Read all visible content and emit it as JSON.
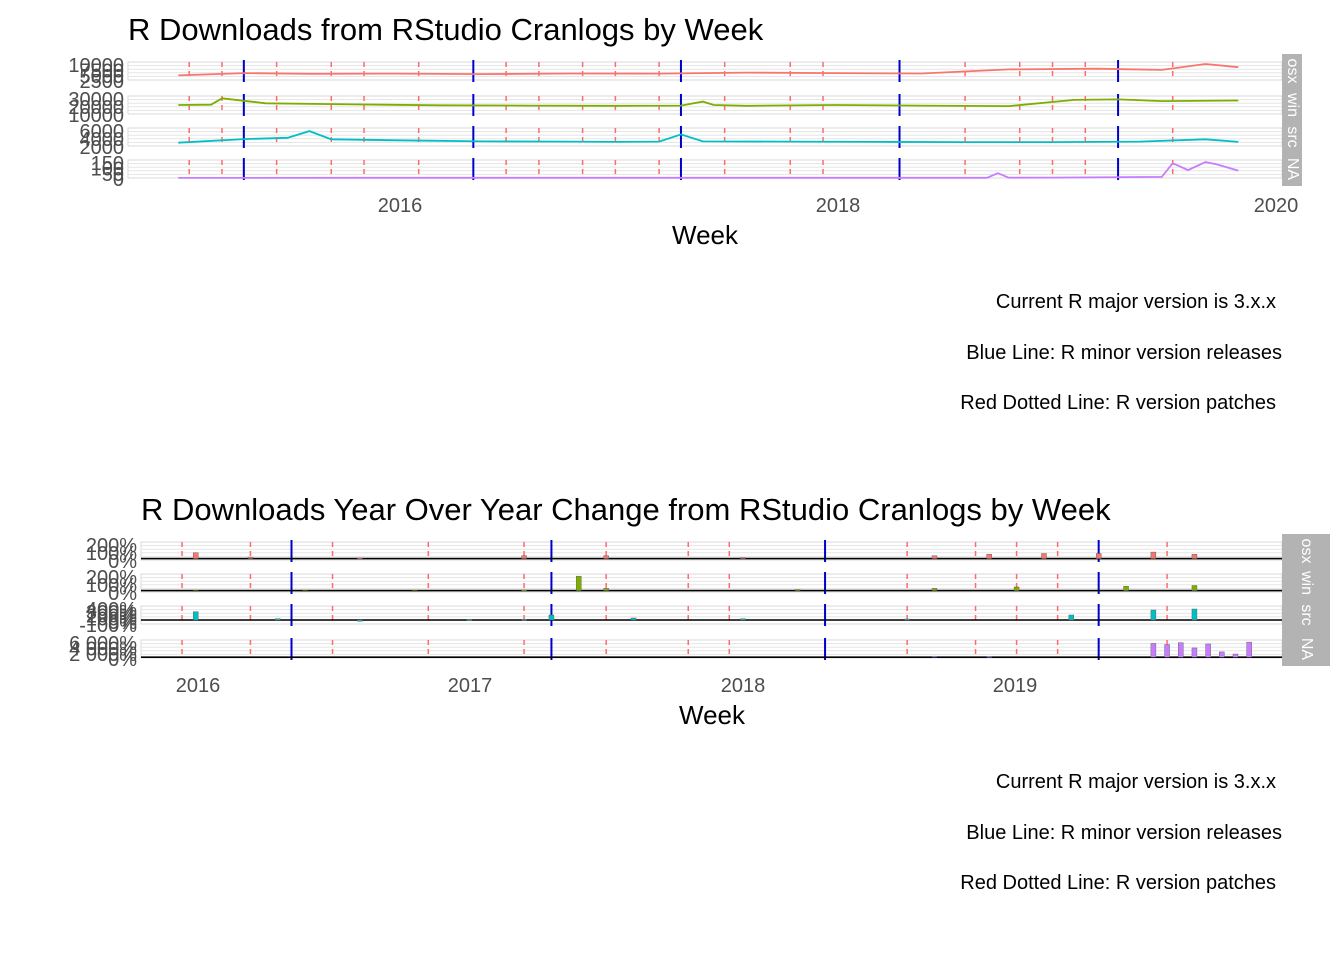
{
  "chart_data": [
    {
      "type": "line",
      "title": "R Downloads from RStudio Cranlogs by Week",
      "xlabel": "Week",
      "ylabel": "",
      "x_ticks": [
        "2016",
        "2018",
        "2020"
      ],
      "xlim": [
        2014.77,
        2020.05
      ],
      "grid": true,
      "panels": [
        {
          "name": "osx",
          "strip_label": "osx",
          "color": "#F8766D",
          "ylim": [
            0,
            11000
          ],
          "y_ticks": [
            "10000",
            "7500",
            "5000",
            "2500"
          ],
          "x": [
            2015.0,
            2015.3,
            2015.6,
            2016.0,
            2016.4,
            2016.8,
            2017.2,
            2017.6,
            2018.0,
            2018.4,
            2018.8,
            2019.2,
            2019.5,
            2019.7,
            2019.85
          ],
          "values": [
            2800,
            4200,
            3800,
            3900,
            3600,
            4000,
            3900,
            4500,
            4200,
            4000,
            6500,
            6900,
            6200,
            9800,
            7800
          ]
        },
        {
          "name": "win",
          "strip_label": "win",
          "color": "#7CAE00",
          "ylim": [
            0,
            32000
          ],
          "y_ticks": [
            "30000",
            "20000",
            "10000"
          ],
          "x": [
            2015.0,
            2015.15,
            2015.2,
            2015.4,
            2015.8,
            2016.2,
            2016.6,
            2017.0,
            2017.3,
            2017.4,
            2017.45,
            2017.6,
            2018.0,
            2018.4,
            2018.8,
            2019.1,
            2019.3,
            2019.5,
            2019.85
          ],
          "values": [
            16000,
            16500,
            28000,
            19000,
            17000,
            15500,
            15000,
            14500,
            15000,
            22000,
            16000,
            14500,
            16000,
            15000,
            14000,
            25000,
            26000,
            23000,
            24000
          ]
        },
        {
          "name": "src",
          "strip_label": "src",
          "color": "#00BFC4",
          "ylim": [
            0,
            7000
          ],
          "y_ticks": [
            "6000",
            "4000",
            "2000"
          ],
          "x": [
            2015.0,
            2015.3,
            2015.5,
            2015.6,
            2015.7,
            2016.0,
            2016.4,
            2016.8,
            2017.0,
            2017.2,
            2017.3,
            2017.4,
            2017.8,
            2018.2,
            2018.6,
            2019.0,
            2019.4,
            2019.7,
            2019.85
          ],
          "values": [
            1300,
            2700,
            3200,
            5800,
            2600,
            2200,
            1800,
            1700,
            1600,
            1700,
            4500,
            1800,
            1700,
            1600,
            1500,
            1500,
            1700,
            2600,
            1600
          ]
        },
        {
          "name": "NA",
          "strip_label": "NA",
          "color": "#C77CFF",
          "ylim": [
            0,
            170
          ],
          "y_ticks": [
            "150",
            "100",
            "50",
            "0"
          ],
          "x": [
            2015.0,
            2015.8,
            2016.5,
            2017.5,
            2018.5,
            2018.7,
            2018.75,
            2018.8,
            2019.0,
            2019.5,
            2019.55,
            2019.62,
            2019.7,
            2019.75,
            2019.85
          ],
          "values": [
            1,
            2,
            2,
            2,
            2,
            2,
            45,
            3,
            4,
            10,
            140,
            75,
            150,
            130,
            70
          ]
        }
      ],
      "minor_version_releases": [
        2015.3,
        2016.35,
        2017.3,
        2018.3,
        2019.3
      ],
      "patch_releases": [
        2015.05,
        2015.2,
        2015.45,
        2015.7,
        2015.85,
        2016.1,
        2016.5,
        2016.65,
        2016.85,
        2017.0,
        2017.2,
        2017.5,
        2017.8,
        2017.95,
        2018.6,
        2018.85,
        2019.0,
        2019.15,
        2019.55
      ]
    },
    {
      "type": "bar",
      "title": "R Downloads Year Over Year Change from RStudio Cranlogs by Week",
      "xlabel": "Week",
      "ylabel": "",
      "x_ticks": [
        "2016",
        "2017",
        "2018",
        "2019"
      ],
      "xlim": [
        2015.8,
        2019.97
      ],
      "grid": true,
      "panels": [
        {
          "name": "osx",
          "strip_label": "osx",
          "color": "#F8766D",
          "y_ticks": [
            "200%",
            "100%",
            "0%"
          ],
          "ylim": [
            -20,
            230
          ],
          "x": [
            2016.0,
            2016.2,
            2016.6,
            2017.2,
            2017.5,
            2018.0,
            2018.7,
            2018.9,
            2019.1,
            2019.3,
            2019.5,
            2019.65
          ],
          "values": [
            80,
            20,
            10,
            40,
            40,
            15,
            40,
            60,
            70,
            70,
            90,
            60
          ]
        },
        {
          "name": "win",
          "strip_label": "win",
          "color": "#7CAE00",
          "y_ticks": [
            "200%",
            "100%",
            "0%"
          ],
          "ylim": [
            -20,
            230
          ],
          "x": [
            2016.0,
            2016.4,
            2016.8,
            2017.2,
            2017.4,
            2017.5,
            2018.2,
            2018.7,
            2019.0,
            2019.4,
            2019.65
          ],
          "values": [
            -10,
            -10,
            -5,
            10,
            200,
            30,
            15,
            30,
            50,
            60,
            70
          ]
        },
        {
          "name": "src",
          "strip_label": "src",
          "color": "#00BFC4",
          "y_ticks": [
            "400%",
            "300%",
            "200%",
            "100%",
            "0%",
            "-100%"
          ],
          "ylim": [
            -120,
            420
          ],
          "x": [
            2016.0,
            2016.3,
            2016.6,
            2017.0,
            2017.2,
            2017.3,
            2017.6,
            2018.0,
            2018.6,
            2019.2,
            2019.5,
            2019.65
          ],
          "values": [
            250,
            40,
            -40,
            10,
            20,
            150,
            60,
            40,
            30,
            150,
            300,
            330
          ]
        },
        {
          "name": "NA",
          "strip_label": "NA",
          "color": "#C77CFF",
          "y_ticks": [
            "6 000%",
            "4 000%",
            "2 000%",
            "0%"
          ],
          "ylim": [
            -300,
            6500
          ],
          "x": [
            2018.7,
            2018.9,
            2019.5,
            2019.55,
            2019.6,
            2019.65,
            2019.7,
            2019.75,
            2019.8,
            2019.85
          ],
          "values": [
            400,
            300,
            5200,
            4800,
            5500,
            3500,
            5000,
            2000,
            1200,
            5700
          ]
        }
      ],
      "minor_version_releases": [
        2016.35,
        2017.3,
        2018.3,
        2019.3
      ],
      "patch_releases": [
        2015.95,
        2016.2,
        2016.5,
        2016.85,
        2017.2,
        2017.5,
        2017.8,
        2017.95,
        2018.6,
        2018.85,
        2019.0,
        2019.15,
        2019.55
      ]
    }
  ],
  "caption_lines": [
    "Current R major version is 3.x.x",
    "Blue Line: R minor version releases",
    "Red Dotted Line: R version patches"
  ]
}
